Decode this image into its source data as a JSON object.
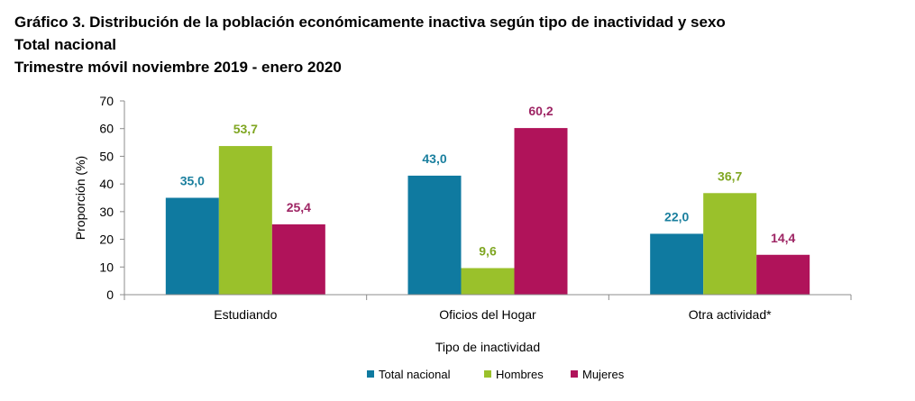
{
  "title_lines": [
    "Gráfico 3. Distribución de la población económicamente inactiva según tipo de inactividad y sexo",
    "Total nacional",
    "Trimestre móvil noviembre 2019 - enero 2020"
  ],
  "chart_data": {
    "type": "bar",
    "title": "Gráfico 3. Distribución de la población económicamente inactiva según tipo de inactividad y sexo",
    "categories": [
      "Estudiando",
      "Oficios del Hogar",
      "Otra actividad*"
    ],
    "series": [
      {
        "name": "Total nacional",
        "color": "#0f7aa0",
        "values": [
          35.0,
          43.0,
          22.0
        ],
        "labels": [
          "35,0",
          "43,0",
          "22,0"
        ]
      },
      {
        "name": "Hombres",
        "color": "#9ac12b",
        "values": [
          53.7,
          9.6,
          36.7
        ],
        "labels": [
          "53,7",
          "9,6",
          "36,7"
        ]
      },
      {
        "name": "Mujeres",
        "color": "#b0135a",
        "values": [
          25.4,
          60.2,
          14.4
        ],
        "labels": [
          "25,4",
          "60,2",
          "14,4"
        ]
      }
    ],
    "label_colors": [
      "#1a7f9e",
      "#7fa621",
      "#9e2564"
    ],
    "xlabel": "Tipo de inactividad",
    "ylabel": "Proporción (%)",
    "ylim": [
      0,
      70
    ],
    "yticks": [
      0,
      10,
      20,
      30,
      40,
      50,
      60,
      70
    ],
    "grid": false,
    "legend_position": "bottom"
  }
}
